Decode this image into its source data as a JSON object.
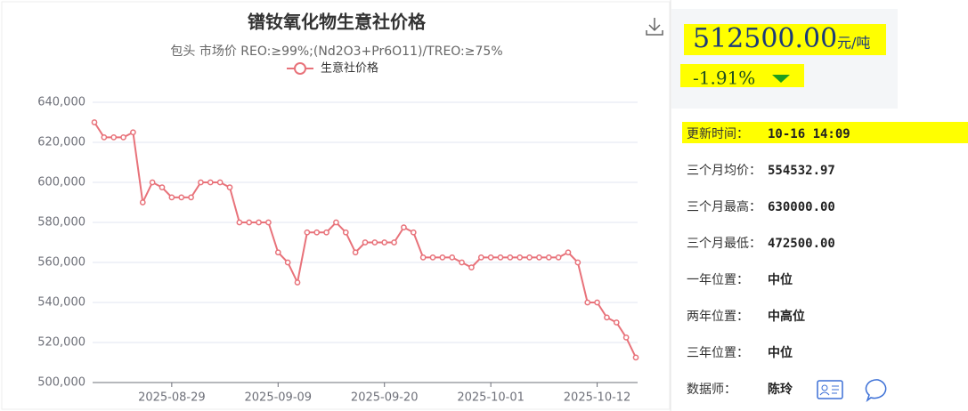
{
  "chart_data": {
    "type": "line",
    "title": "镨钕氧化物生意社价格",
    "subtitle": "包头 市场价 REO:≥99%;(Nd2O3+Pr6O11)/TREO:≥75%",
    "categories": [
      null,
      null,
      null,
      null,
      null,
      null,
      null,
      null,
      "2025-08-29",
      null,
      null,
      null,
      null,
      null,
      null,
      null,
      null,
      null,
      null,
      "2025-09-09",
      null,
      null,
      null,
      null,
      null,
      null,
      null,
      null,
      null,
      null,
      "2025-09-20",
      null,
      null,
      null,
      null,
      null,
      null,
      null,
      null,
      null,
      null,
      "2025-10-01",
      null,
      null,
      null,
      null,
      null,
      null,
      null,
      null,
      null,
      null,
      "2025-10-12",
      null,
      null,
      null,
      null
    ],
    "series": [
      {
        "name": "生意社价格",
        "color": "#e8727a",
        "values": [
          630000,
          622500,
          622500,
          622500,
          625000,
          590000,
          600000,
          597500,
          592500,
          592500,
          592500,
          600000,
          600000,
          600000,
          597500,
          580000,
          580000,
          580000,
          580000,
          565000,
          560000,
          550000,
          575000,
          575000,
          575000,
          580000,
          575000,
          565000,
          570000,
          570000,
          570000,
          570000,
          577500,
          575000,
          562500,
          562500,
          562500,
          562500,
          560000,
          557500,
          562500,
          562500,
          562500,
          562500,
          562500,
          562500,
          562500,
          562500,
          562500,
          565000,
          560000,
          540000,
          540000,
          532500,
          530000,
          522500,
          512500
        ]
      }
    ],
    "ylim": [
      500000,
      640000
    ],
    "yticks": [
      {
        "value": 500000,
        "label": "500,000"
      },
      {
        "value": 520000,
        "label": "520,000"
      },
      {
        "value": 540000,
        "label": "540,000"
      },
      {
        "value": 560000,
        "label": "560,000"
      },
      {
        "value": 580000,
        "label": "580,000"
      },
      {
        "value": 600000,
        "label": "600,000"
      },
      {
        "value": 620000,
        "label": "620,000"
      },
      {
        "value": 640000,
        "label": "640,000"
      }
    ],
    "grid": true
  },
  "panel": {
    "price": "512500.00",
    "unit": "元/吨",
    "change": "-1.91%",
    "update_label": "更新时间：",
    "update_value": "10-16 14:09",
    "rows": [
      [
        "三个月均价：",
        "554532.97"
      ],
      [
        "三个月最高：",
        "630000.00"
      ],
      [
        "三个月最低：",
        "472500.00"
      ],
      [
        "一年位置：",
        "中位"
      ],
      [
        "两年位置：",
        "中高位"
      ],
      [
        "三年位置：",
        "中位"
      ],
      [
        "数据师：",
        "陈玲"
      ]
    ]
  }
}
